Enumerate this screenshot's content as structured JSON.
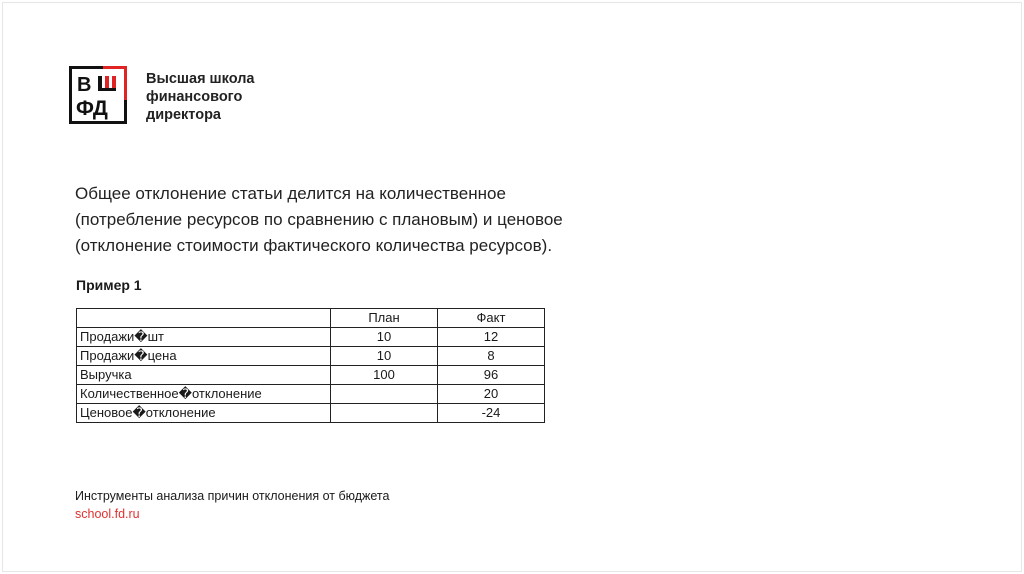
{
  "logo": {
    "text_lines": [
      "Высшая школа",
      "финансового",
      "директора"
    ],
    "mark_letters": "ВШФД",
    "accent_color": "#e02424"
  },
  "body": {
    "lines": [
      "Общее отклонение статьи делится на количественное",
      "(потребление ресурсов по сравнению с плановым) и ценовое",
      "(отклонение стоимости фактического количества ресурсов)."
    ]
  },
  "example_title": "Пример 1",
  "table": {
    "headers": [
      "",
      "План",
      "Факт"
    ],
    "rows": [
      [
        "Продажи�шт",
        "10",
        "12"
      ],
      [
        "Продажи�цена",
        "10",
        "8"
      ],
      [
        "Выручка",
        "100",
        "96"
      ],
      [
        "Количественное�отклонение",
        "",
        "20"
      ],
      [
        "Ценовое�отклонение",
        "",
        "-24"
      ]
    ]
  },
  "footer": {
    "title": "Инструменты анализа причин отклонения от бюджета",
    "link": "school.fd.ru"
  }
}
